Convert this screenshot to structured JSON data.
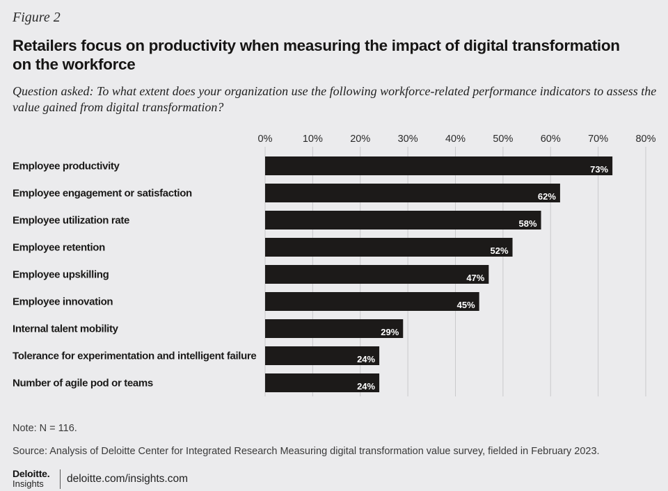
{
  "figure_label": "Figure 2",
  "title": "Retailers focus on productivity when measuring the impact of digital transformation on the workforce",
  "subtitle": "Question asked: To what extent does your organization use the following workforce-related performance indicators to assess the value gained from digital transformation?",
  "chart_data": {
    "type": "bar",
    "orientation": "horizontal",
    "categories": [
      "Employee productivity",
      "Employee engagement or satisfaction",
      "Employee utilization rate",
      "Employee retention",
      "Employee upskilling",
      "Employee innovation",
      "Internal talent mobility",
      "Tolerance for experimentation and intelligent failure",
      "Number of agile pod or teams"
    ],
    "values": [
      73,
      62,
      58,
      52,
      47,
      45,
      29,
      24,
      24
    ],
    "value_labels": [
      "73%",
      "62%",
      "58%",
      "52%",
      "47%",
      "45%",
      "29%",
      "24%",
      "24%"
    ],
    "xlim": [
      0,
      80
    ],
    "x_ticks": [
      "0%",
      "10%",
      "20%",
      "30%",
      "40%",
      "50%",
      "60%",
      "70%",
      "80%"
    ],
    "axis_position": "top",
    "grid": true,
    "bar_color": "#1c1a19",
    "grid_color": "#c9c9cb"
  },
  "note": "Note: N = 116.",
  "source": "Source: Analysis of Deloitte Center for Integrated Research Measuring digital transformation value survey, fielded in February 2023.",
  "footer": {
    "logo_brand": "Deloitte.",
    "logo_sub": "Insights",
    "url": "deloitte.com/insights.com"
  }
}
